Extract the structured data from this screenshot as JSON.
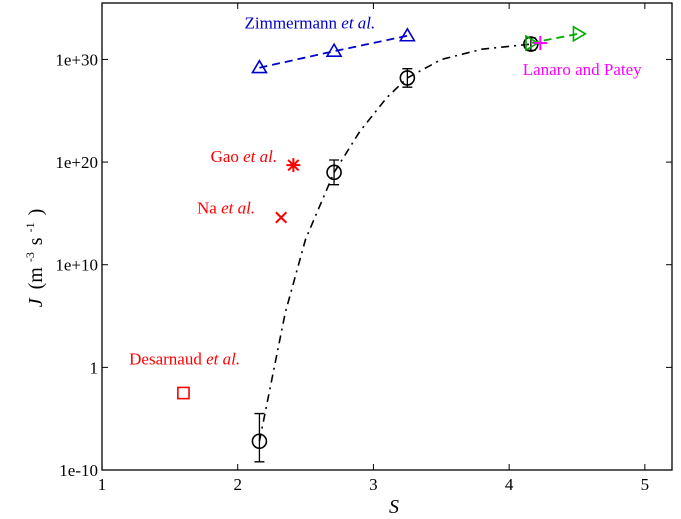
{
  "chart_data": {
    "type": "scatter",
    "xlabel": "S",
    "ylabel": {
      "main": "J",
      "paren_open": "(m",
      "exp1": "-3",
      "mid": "s",
      "exp2": "-1",
      "paren_close": ")"
    },
    "x_axis": {
      "range": [
        1,
        5.2
      ],
      "ticks": [
        1,
        2,
        3,
        4,
        5
      ],
      "tick_labels": [
        "1",
        "2",
        "3",
        "4",
        "5"
      ]
    },
    "y_axis": {
      "scale": "log10",
      "range_exp": [
        -10,
        35.5
      ],
      "ticks_exp": [
        -10,
        0,
        10,
        20,
        30
      ],
      "tick_labels": [
        "1e-10",
        "1",
        "1e+10",
        "1e+20",
        "1e+30"
      ]
    },
    "grid": false,
    "series": [
      {
        "marker": "circle",
        "color": "#000000",
        "x": [
          2.16,
          2.71,
          3.25,
          4.16
        ],
        "y_log10": [
          -7.2,
          19.0,
          28.2,
          31.5
        ],
        "err_log10": [
          [
            -9.2,
            -4.5
          ],
          [
            17.8,
            20.2
          ],
          [
            27.3,
            29.1
          ],
          [
            30.9,
            32.1
          ]
        ]
      },
      {
        "marker": "triangle-up",
        "color": "#0000cc",
        "x": [
          2.16,
          2.71,
          3.25
        ],
        "y_log10": [
          29.2,
          30.8,
          32.3
        ],
        "dashed": true
      },
      {
        "marker": "triangle-right",
        "color": "#00aa00",
        "x": [
          4.16,
          4.51
        ],
        "y_log10": [
          31.6,
          32.5
        ],
        "dashed": true
      },
      {
        "marker": "plus",
        "color": "#ff00ff",
        "x": [
          4.23
        ],
        "y_log10": [
          31.6
        ]
      },
      {
        "marker": "asterisk",
        "color": "#ff0000",
        "x": [
          2.41
        ],
        "y_log10": [
          19.7
        ]
      },
      {
        "marker": "x",
        "color": "#ff0000",
        "x": [
          2.32
        ],
        "y_log10": [
          14.6
        ]
      },
      {
        "marker": "square",
        "color": "#ff0000",
        "x": [
          1.6
        ],
        "y_log10": [
          -2.5
        ]
      }
    ],
    "fit_curve": {
      "color": "#000000",
      "style": "dash-dot",
      "x": [
        2.16,
        2.35,
        2.5,
        2.71,
        2.9,
        3.1,
        3.25,
        3.5,
        3.8,
        4.16
      ],
      "y_log10": [
        -7.2,
        5.3,
        12.5,
        19.0,
        23.0,
        26.3,
        28.2,
        30.0,
        31.0,
        31.5
      ]
    },
    "annotations": [
      {
        "text": "Zimmermann",
        "suffix": "et al.",
        "color": "#0000cc",
        "x": 2.05,
        "y_log10": 33.0
      },
      {
        "text": "Gao",
        "suffix": "et al.",
        "color": "#ff0000",
        "x": 1.8,
        "y_log10": 20.0
      },
      {
        "text": "Na",
        "suffix": "et al.",
        "color": "#ff0000",
        "x": 1.7,
        "y_log10": 15.0
      },
      {
        "text": "Desarnaud",
        "suffix": "et al.",
        "color": "#ff0000",
        "x": 1.2,
        "y_log10": 0.3
      },
      {
        "text": "Lanaro and Patey",
        "suffix": "",
        "color": "#ff00ff",
        "x": 4.1,
        "y_log10": 28.5
      }
    ]
  }
}
